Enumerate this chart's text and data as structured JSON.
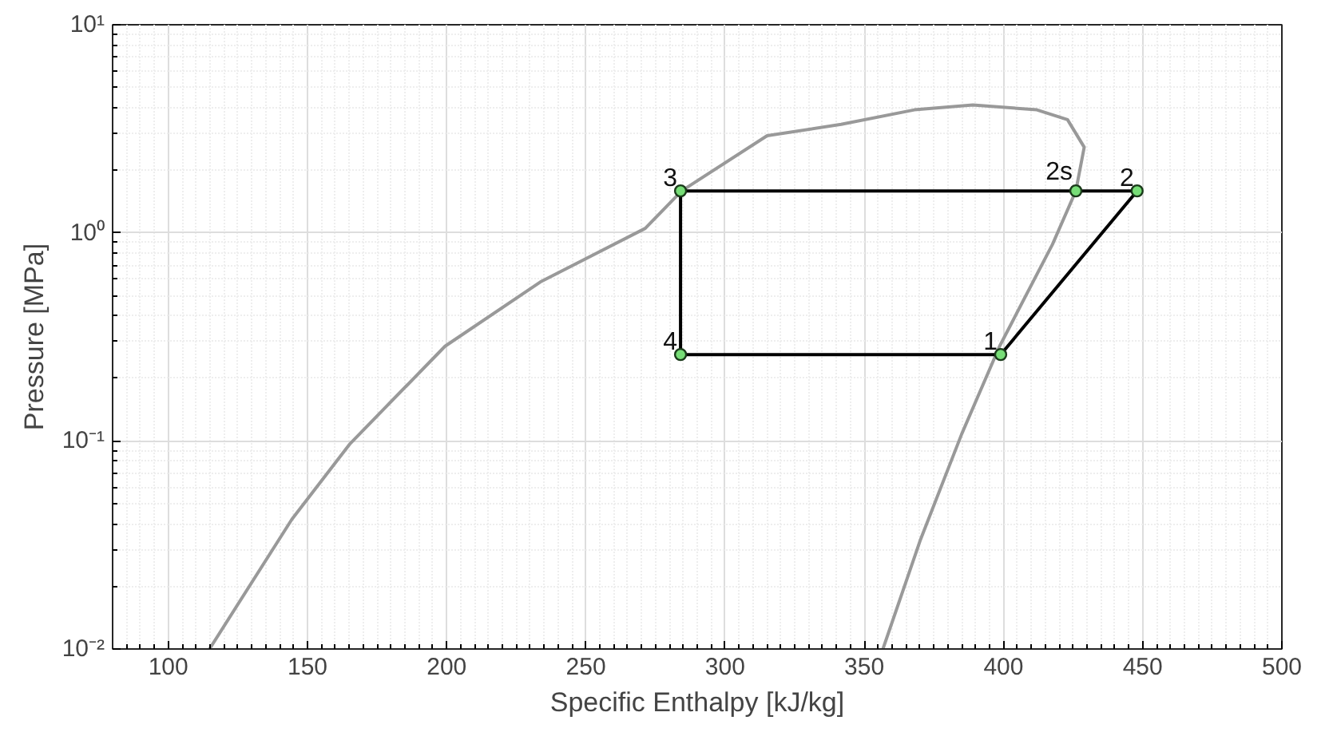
{
  "chart_data": {
    "type": "line",
    "xlabel": "Specific Enthalpy [kJ/kg]",
    "ylabel": "Pressure [MPa]",
    "log": "y",
    "grid": true,
    "xlim": [
      80,
      500
    ],
    "ylim": [
      0.01,
      10
    ],
    "xticks": [
      100,
      150,
      200,
      250,
      300,
      350,
      400,
      450,
      500
    ],
    "yticks": [
      {
        "value": 0.01,
        "label": "10⁻²"
      },
      {
        "value": 0.1,
        "label": "10⁻¹"
      },
      {
        "value": 1,
        "label": "10⁰"
      },
      {
        "value": 10,
        "label": "10¹"
      }
    ],
    "series": [
      {
        "color": "#999999",
        "marker": "none",
        "x": [
          114.8,
          144.4,
          165.3,
          199.4,
          233.6,
          271.3,
          284.4,
          315.1,
          341.7,
          368,
          389,
          412,
          423,
          429,
          426,
          417.6,
          398.6,
          385,
          370,
          356.7
        ],
        "values": [
          0.01,
          0.042,
          0.097,
          0.285,
          0.58,
          1.05,
          1.59,
          2.93,
          3.32,
          3.9,
          4.12,
          3.9,
          3.5,
          2.58,
          1.59,
          0.88,
          0.285,
          0.108,
          0.033,
          0.01
        ]
      },
      {
        "color": "#000000",
        "marker": "none",
        "x": [
          284,
          399,
          448
        ],
        "values": [
          0.26,
          0.26,
          1.59
        ]
      },
      {
        "color": "#000000",
        "marker": "none",
        "x": [
          448,
          284,
          284
        ],
        "values": [
          1.59,
          1.59,
          0.26
        ]
      },
      {
        "type": "scatter",
        "color": "#77dd77",
        "marker": "circle",
        "x": [
          399,
          448,
          426,
          284,
          284
        ],
        "values": [
          0.26,
          1.59,
          1.59,
          1.59,
          0.26
        ]
      }
    ],
    "annotations": [
      {
        "text": "1",
        "x": 399,
        "y": 0.26
      },
      {
        "text": "2",
        "x": 448,
        "y": 1.59
      },
      {
        "text": "2s",
        "x": 426,
        "y": 1.59
      },
      {
        "text": "3",
        "x": 284,
        "y": 1.59
      },
      {
        "text": "4",
        "x": 284,
        "y": 0.26
      }
    ]
  }
}
